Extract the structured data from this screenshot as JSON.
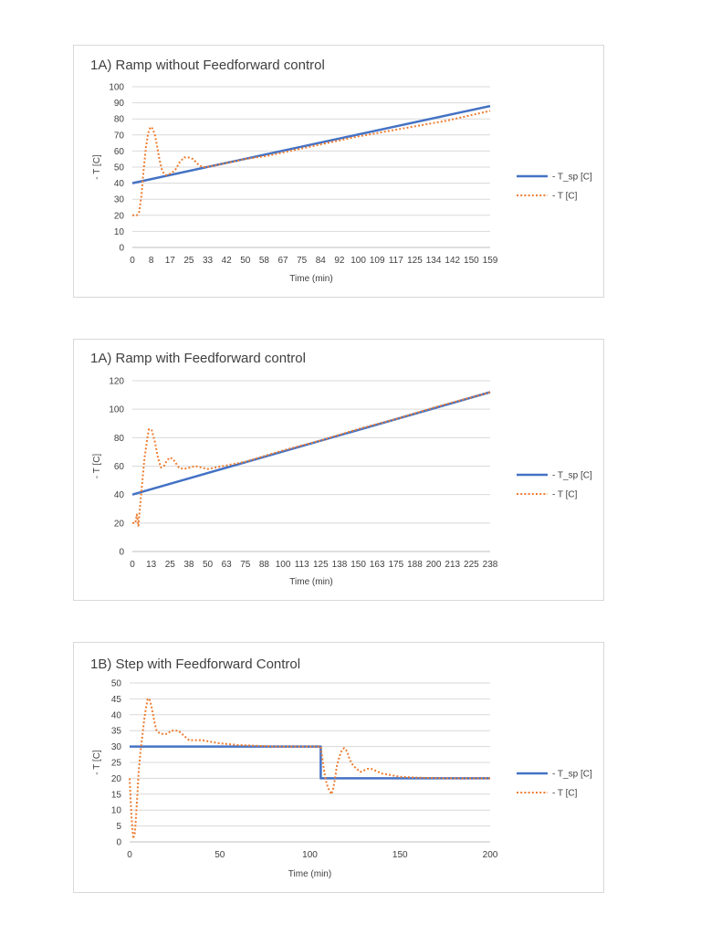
{
  "chart_data": [
    {
      "type": "line",
      "title": "1A) Ramp without Feedforward control",
      "xlabel": "Time (min)",
      "ylabel": "- T [C]",
      "xlim": [
        0,
        159
      ],
      "ylim": [
        0,
        100
      ],
      "y_ticks": [
        "0",
        "10",
        "20",
        "30",
        "40",
        "50",
        "60",
        "70",
        "80",
        "90",
        "100"
      ],
      "x_ticks": [
        "0",
        "8",
        "17",
        "25",
        "33",
        "42",
        "50",
        "58",
        "67",
        "75",
        "84",
        "92",
        "100",
        "109",
        "117",
        "125",
        "134",
        "142",
        "150",
        "159"
      ],
      "grid": true,
      "legend": "right",
      "series": [
        {
          "name": "- T_sp [C]",
          "style": "solid",
          "color": "#4472c4",
          "points": [
            [
              0,
              40
            ],
            [
              159,
              88
            ]
          ]
        },
        {
          "name": "- T [C]",
          "style": "dotted",
          "color": "#ed7d31",
          "points": [
            [
              0,
              20
            ],
            [
              2,
              20
            ],
            [
              3,
              22
            ],
            [
              4,
              32
            ],
            [
              5,
              48
            ],
            [
              6,
              62
            ],
            [
              7,
              71
            ],
            [
              8,
              75
            ],
            [
              9,
              74
            ],
            [
              10,
              70
            ],
            [
              11,
              63
            ],
            [
              12,
              55
            ],
            [
              13,
              49
            ],
            [
              14,
              46
            ],
            [
              15,
              45
            ],
            [
              17,
              46
            ],
            [
              19,
              48
            ],
            [
              21,
              53
            ],
            [
              23,
              56
            ],
            [
              25,
              56
            ],
            [
              27,
              55
            ],
            [
              29,
              52
            ],
            [
              31,
              50
            ],
            [
              33,
              50
            ],
            [
              40,
              52
            ],
            [
              50,
              55
            ],
            [
              60,
              57
            ],
            [
              80,
              63
            ],
            [
              100,
              69
            ],
            [
              120,
              74
            ],
            [
              140,
              79
            ],
            [
              159,
              85
            ]
          ]
        }
      ]
    },
    {
      "type": "line",
      "title": "1A) Ramp with Feedforward control",
      "xlabel": "Time (min)",
      "ylabel": "- T [C]",
      "xlim": [
        0,
        238
      ],
      "ylim": [
        0,
        120
      ],
      "y_ticks": [
        "0",
        "20",
        "40",
        "60",
        "80",
        "100",
        "120"
      ],
      "x_ticks": [
        "0",
        "13",
        "25",
        "38",
        "50",
        "63",
        "75",
        "88",
        "100",
        "113",
        "125",
        "138",
        "150",
        "163",
        "175",
        "188",
        "200",
        "213",
        "225",
        "238"
      ],
      "grid": true,
      "legend": "right",
      "series": [
        {
          "name": "- T_sp [C]",
          "style": "solid",
          "color": "#4472c4",
          "points": [
            [
              0,
              40
            ],
            [
              238,
              112
            ]
          ]
        },
        {
          "name": "- T [C]",
          "style": "dotted",
          "color": "#ed7d31",
          "points": [
            [
              0,
              20
            ],
            [
              2,
              20
            ],
            [
              3,
              26
            ],
            [
              4,
              18
            ],
            [
              5,
              30
            ],
            [
              6,
              42
            ],
            [
              8,
              65
            ],
            [
              10,
              80
            ],
            [
              11,
              86
            ],
            [
              13,
              85
            ],
            [
              15,
              77
            ],
            [
              17,
              66
            ],
            [
              19,
              59
            ],
            [
              21,
              60
            ],
            [
              23,
              64
            ],
            [
              25,
              66
            ],
            [
              27,
              65
            ],
            [
              29,
              62
            ],
            [
              31,
              59
            ],
            [
              34,
              58
            ],
            [
              38,
              59
            ],
            [
              42,
              60
            ],
            [
              46,
              59
            ],
            [
              50,
              58
            ],
            [
              55,
              59
            ],
            [
              60,
              60
            ],
            [
              75,
              63
            ],
            [
              100,
              71
            ],
            [
              125,
              78
            ],
            [
              150,
              86
            ],
            [
              175,
              93
            ],
            [
              200,
              101
            ],
            [
              238,
              112
            ]
          ]
        }
      ]
    },
    {
      "type": "line",
      "title": "1B) Step with Feedforward Control",
      "xlabel": "Time (min)",
      "ylabel": "- T [C]",
      "xlim": [
        0,
        200
      ],
      "ylim": [
        0,
        50
      ],
      "y_ticks": [
        "0",
        "5",
        "10",
        "15",
        "20",
        "25",
        "30",
        "35",
        "40",
        "45",
        "50"
      ],
      "x_ticks": [
        "0",
        "50",
        "100",
        "150",
        "200"
      ],
      "grid": true,
      "legend": "right",
      "series": [
        {
          "name": "- T_sp [C]",
          "style": "solid",
          "color": "#4472c4",
          "points": [
            [
              0,
              30
            ],
            [
              106,
              30
            ],
            [
              106,
              20
            ],
            [
              200,
              20
            ]
          ]
        },
        {
          "name": "- T [C]",
          "style": "dotted",
          "color": "#ed7d31",
          "points": [
            [
              0,
              20
            ],
            [
              1,
              8
            ],
            [
              2,
              1
            ],
            [
              3,
              3
            ],
            [
              4,
              12
            ],
            [
              5,
              22
            ],
            [
              6,
              28
            ],
            [
              7,
              33
            ],
            [
              8,
              38
            ],
            [
              9,
              42
            ],
            [
              10,
              45
            ],
            [
              11,
              45
            ],
            [
              12,
              43
            ],
            [
              13,
              40
            ],
            [
              14,
              37
            ],
            [
              15,
              35
            ],
            [
              17,
              34
            ],
            [
              19,
              34
            ],
            [
              21,
              34
            ],
            [
              23,
              35
            ],
            [
              25,
              35
            ],
            [
              27,
              35
            ],
            [
              29,
              34
            ],
            [
              31,
              33
            ],
            [
              33,
              32
            ],
            [
              36,
              32
            ],
            [
              40,
              32
            ],
            [
              45,
              31.5
            ],
            [
              50,
              31
            ],
            [
              60,
              30.5
            ],
            [
              80,
              30
            ],
            [
              106,
              30
            ],
            [
              107,
              26
            ],
            [
              108,
              22
            ],
            [
              109,
              19
            ],
            [
              110,
              17
            ],
            [
              111,
              16
            ],
            [
              112,
              15
            ],
            [
              113,
              17
            ],
            [
              114,
              20
            ],
            [
              115,
              24
            ],
            [
              116,
              26
            ],
            [
              117,
              28
            ],
            [
              118,
              29
            ],
            [
              119,
              29.5
            ],
            [
              120,
              29
            ],
            [
              121,
              28
            ],
            [
              122,
              26
            ],
            [
              124,
              24
            ],
            [
              126,
              23
            ],
            [
              128,
              22
            ],
            [
              130,
              22.5
            ],
            [
              132,
              23
            ],
            [
              134,
              23
            ],
            [
              136,
              22.5
            ],
            [
              138,
              22
            ],
            [
              140,
              21.5
            ],
            [
              145,
              21
            ],
            [
              150,
              20.5
            ],
            [
              160,
              20.2
            ],
            [
              175,
              20
            ],
            [
              200,
              20
            ]
          ]
        }
      ]
    }
  ]
}
